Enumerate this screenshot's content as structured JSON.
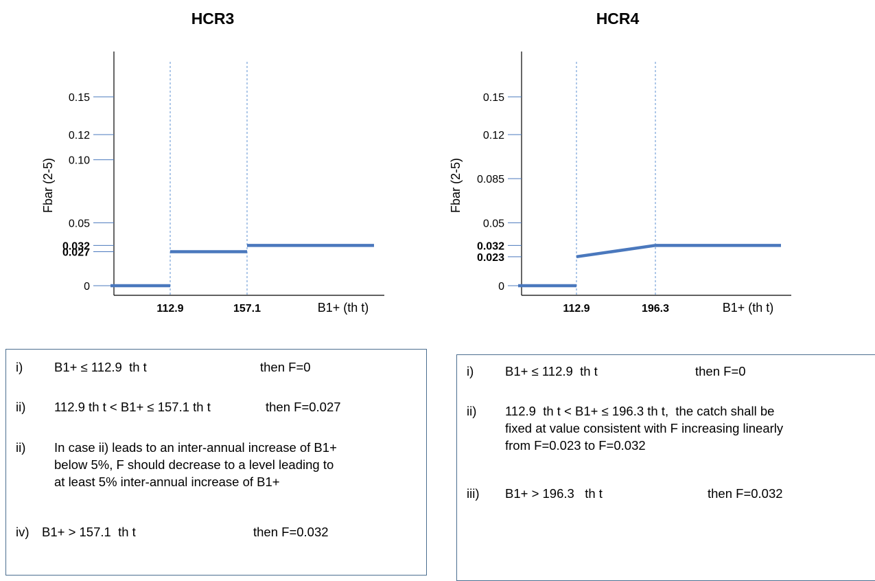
{
  "charts": [
    {
      "id": "hcr3",
      "title": "HCR3",
      "ylabel": "Fbar (2-5)",
      "xlabel": "B1+ (th t)",
      "yticks": [
        {
          "value": 0.15,
          "label": "0.15",
          "bold": false
        },
        {
          "value": 0.12,
          "label": "0.12",
          "bold": false
        },
        {
          "value": 0.1,
          "label": "0.10",
          "bold": false
        },
        {
          "value": 0.05,
          "label": "0.05",
          "bold": false
        },
        {
          "value": 0.032,
          "label": "0.032",
          "bold": true
        },
        {
          "value": 0.027,
          "label": "0.027",
          "bold": true
        },
        {
          "value": 0,
          "label": "0",
          "bold": false
        }
      ],
      "xthresholds": [
        {
          "value": 112.9,
          "label": "112.9"
        },
        {
          "value": 157.1,
          "label": "157.1"
        }
      ],
      "segments": [
        {
          "x0": 0,
          "x1": 112.9,
          "y0": 0,
          "y1": 0
        },
        {
          "x0": 112.9,
          "x1": 157.1,
          "y0": 0.027,
          "y1": 0.027
        },
        {
          "x0": 157.1,
          "x1": 230,
          "y0": 0.032,
          "y1": 0.032
        }
      ],
      "line_color": "#4a78bd"
    },
    {
      "id": "hcr4",
      "title": "HCR4",
      "ylabel": "Fbar (2-5)",
      "xlabel": "B1+ (th t)",
      "yticks": [
        {
          "value": 0.15,
          "label": "0.15",
          "bold": false
        },
        {
          "value": 0.12,
          "label": "0.12",
          "bold": false
        },
        {
          "value": 0.085,
          "label": "0.085",
          "bold": false
        },
        {
          "value": 0.05,
          "label": "0.05",
          "bold": false
        },
        {
          "value": 0.032,
          "label": "0.032",
          "bold": true
        },
        {
          "value": 0.023,
          "label": "0.023",
          "bold": true
        },
        {
          "value": 0,
          "label": "0",
          "bold": false
        }
      ],
      "xthresholds": [
        {
          "value": 112.9,
          "label": "112.9"
        },
        {
          "value": 196.3,
          "label": "196.3"
        }
      ],
      "segments": [
        {
          "x0": 0,
          "x1": 112.9,
          "y0": 0,
          "y1": 0
        },
        {
          "x0": 112.9,
          "x1": 196.3,
          "y0": 0.023,
          "y1": 0.032
        },
        {
          "x0": 196.3,
          "x1": 270,
          "y0": 0.032,
          "y1": 0.032
        }
      ],
      "line_color": "#4a78bd"
    }
  ],
  "rules_hcr3": [
    {
      "num": "i)",
      "text": "B1+ ≤ 112.9  th t",
      "then": "then F=0"
    },
    {
      "num": "ii)",
      "text": "112.9 th t < B1+ ≤ 157.1 th t",
      "then": "then F=0.027"
    },
    {
      "num": "ii)",
      "text": "In case ii) leads to an inter-annual increase of B1+\nbelow 5%, F should decrease to a level leading to\nat least 5% inter-annual increase of B1+",
      "then": ""
    },
    {
      "num": "iv)",
      "text": "B1+ > 157.1  th t",
      "then": "then F=0.032"
    }
  ],
  "rules_hcr4": [
    {
      "num": "i)",
      "text": "B1+ ≤ 112.9  th t",
      "then": "then F=0"
    },
    {
      "num": "ii)",
      "text": "112.9  th t < B1+ ≤ 196.3 th t,  the catch shall be\nfixed at value consistent with F increasing linearly\nfrom F=0.023 to F=0.032",
      "then": ""
    },
    {
      "num": "iii)",
      "text": "B1+ > 196.3   th t",
      "then": "then F=0.032"
    }
  ]
}
